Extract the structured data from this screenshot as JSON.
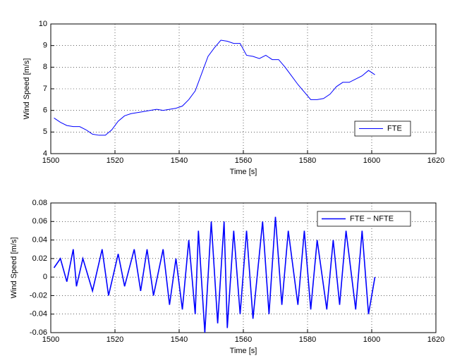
{
  "chart_data": [
    {
      "type": "line",
      "xlabel": "Time [s]",
      "ylabel": "Wind Speed [m/s]",
      "xlim": [
        1500,
        1620
      ],
      "xticks": [
        1500,
        1520,
        1540,
        1560,
        1580,
        1600,
        1620
      ],
      "ylim": [
        4,
        10
      ],
      "yticks": [
        4,
        5,
        6,
        7,
        8,
        9,
        10
      ],
      "grid": true,
      "legend": "lower right",
      "series": [
        {
          "name": "FTE",
          "color": "#0000ff",
          "x": [
            1501,
            1503,
            1505,
            1507,
            1509,
            1511,
            1513,
            1515,
            1517,
            1519,
            1521,
            1523,
            1525,
            1527,
            1529,
            1531,
            1533,
            1535,
            1537,
            1539,
            1541,
            1543,
            1545,
            1547,
            1549,
            1551,
            1553,
            1555,
            1557,
            1559,
            1561,
            1563,
            1565,
            1567,
            1569,
            1571,
            1573,
            1575,
            1577,
            1579,
            1581,
            1583,
            1585,
            1587,
            1589,
            1591,
            1593,
            1595,
            1597,
            1599,
            1601
          ],
          "values": [
            5.65,
            5.45,
            5.3,
            5.25,
            5.25,
            5.1,
            4.9,
            4.85,
            4.85,
            5.1,
            5.5,
            5.75,
            5.85,
            5.9,
            5.95,
            6.0,
            6.05,
            6.0,
            6.05,
            6.1,
            6.2,
            6.5,
            6.9,
            7.7,
            8.5,
            8.9,
            9.25,
            9.2,
            9.1,
            9.1,
            8.55,
            8.5,
            8.4,
            8.55,
            8.35,
            8.35,
            8.0,
            7.6,
            7.2,
            6.85,
            6.5,
            6.5,
            6.55,
            6.75,
            7.1,
            7.3,
            7.3,
            7.45,
            7.6,
            7.85,
            7.65
          ]
        }
      ]
    },
    {
      "type": "line",
      "xlabel": "Time [s]",
      "ylabel": "Wind Speed [m/s]",
      "xlim": [
        1500,
        1620
      ],
      "xticks": [
        1500,
        1520,
        1540,
        1560,
        1580,
        1600,
        1620
      ],
      "ylim": [
        -0.06,
        0.08
      ],
      "yticks": [
        -0.06,
        -0.04,
        -0.02,
        0,
        0.02,
        0.04,
        0.06,
        0.08
      ],
      "grid": true,
      "legend": "upper right",
      "series": [
        {
          "name": "FTE − NFTE",
          "color": "#0000ff",
          "x": [
            1501,
            1503,
            1505,
            1507,
            1508,
            1510,
            1513,
            1516,
            1518,
            1521,
            1523,
            1526,
            1528,
            1530,
            1532,
            1535,
            1537,
            1539,
            1541,
            1543,
            1545,
            1546,
            1548,
            1550,
            1552,
            1554,
            1555,
            1557,
            1559,
            1561,
            1563,
            1566,
            1568,
            1570,
            1572,
            1574,
            1577,
            1579,
            1581,
            1583,
            1586,
            1588,
            1590,
            1592,
            1595,
            1597,
            1599,
            1601
          ],
          "values": [
            0.01,
            0.02,
            -0.005,
            0.03,
            -0.01,
            0.02,
            -0.015,
            0.03,
            -0.02,
            0.025,
            -0.01,
            0.03,
            -0.015,
            0.03,
            -0.02,
            0.03,
            -0.03,
            0.02,
            -0.035,
            0.04,
            -0.04,
            0.05,
            -0.06,
            0.06,
            -0.05,
            0.06,
            -0.055,
            0.05,
            -0.04,
            0.05,
            -0.045,
            0.06,
            -0.04,
            0.065,
            -0.03,
            0.05,
            -0.03,
            0.05,
            -0.035,
            0.04,
            -0.035,
            0.04,
            -0.03,
            0.05,
            -0.035,
            0.05,
            -0.04,
            0.0
          ]
        }
      ]
    }
  ]
}
